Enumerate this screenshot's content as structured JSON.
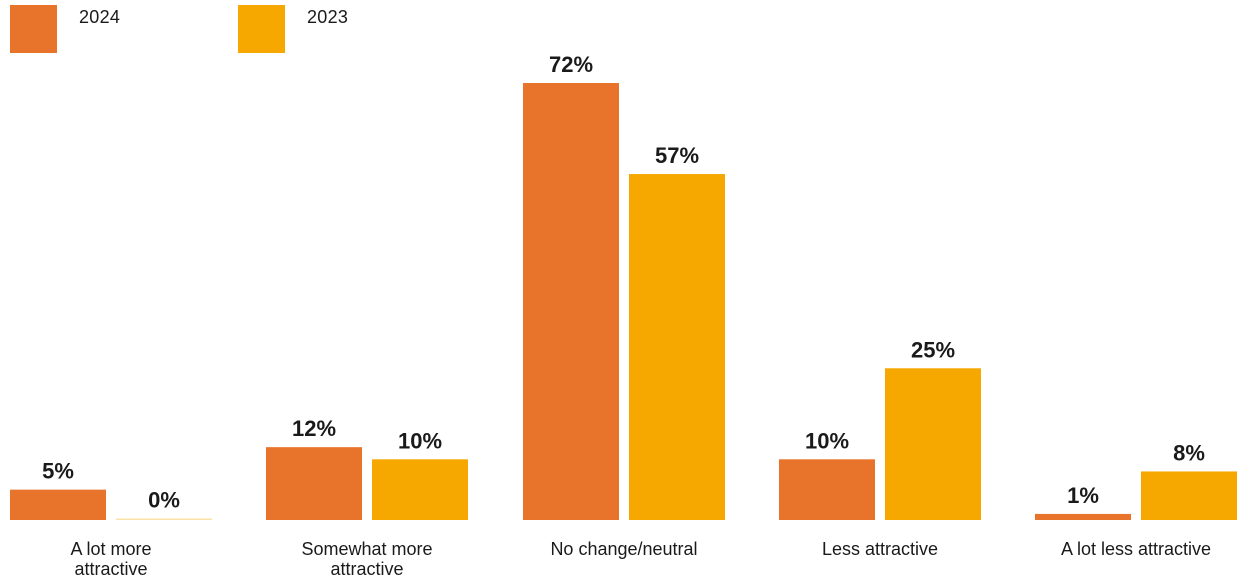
{
  "legend": [
    {
      "name": "2024",
      "color": "#E8742C"
    },
    {
      "name": "2023",
      "color": "#F7A800"
    }
  ],
  "chart_data": {
    "type": "bar",
    "title": "",
    "xlabel": "",
    "ylabel": "",
    "categories": [
      [
        "A lot more",
        "attractive"
      ],
      [
        "Somewhat more",
        "attractive"
      ],
      [
        "No change/neutral"
      ],
      [
        "Less attractive"
      ],
      [
        "A lot less attractive"
      ]
    ],
    "series": [
      {
        "name": "2024",
        "color": "#E8742C",
        "values": [
          5,
          12,
          72,
          10,
          1
        ],
        "labels": [
          "5%",
          "12%",
          "72%",
          "10%",
          "1%"
        ]
      },
      {
        "name": "2023",
        "color": "#F7A800",
        "values": [
          0,
          10,
          57,
          25,
          8
        ],
        "labels": [
          "0%",
          "10%",
          "57%",
          "25%",
          "8%"
        ]
      }
    ],
    "ylim": [
      0,
      72
    ],
    "grid": false,
    "legend_position": "top-left"
  }
}
